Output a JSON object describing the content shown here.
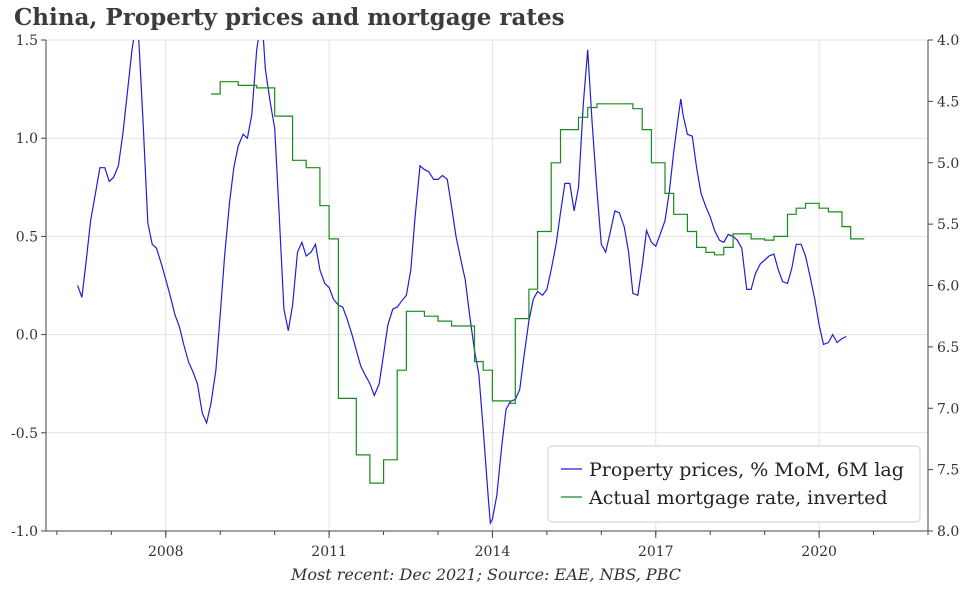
{
  "title": "China, Property prices and mortgage rates",
  "source": "Most recent: Dec 2021; Source: EAE, NBS, PBC",
  "chart_data": {
    "type": "line",
    "title": "China, Property prices and mortgage rates",
    "xlabel": "",
    "ylabel_left": "",
    "ylabel_right": "",
    "grid": true,
    "legend_position": "bottom-right",
    "x_ticks": [
      "2008",
      "2011",
      "2014",
      "2017",
      "2020"
    ],
    "xlim": [
      2005.8,
      2022.0
    ],
    "left_axis": {
      "range": [
        -1.0,
        1.5
      ],
      "ticks": [
        "-1.0",
        "-0.5",
        "0.0",
        "0.5",
        "1.0",
        "1.5"
      ]
    },
    "right_axis": {
      "range": [
        4.0,
        8.0
      ],
      "inverted": true,
      "ticks": [
        "4.0",
        "4.5",
        "5.0",
        "5.5",
        "6.0",
        "6.5",
        "7.0",
        "7.5",
        "8.0"
      ]
    },
    "series": [
      {
        "name": "Property prices, % MoM, 6M lag",
        "axis": "left",
        "color": "#1f1fd6",
        "points": [
          [
            2006.38,
            0.25
          ],
          [
            2006.46,
            0.19
          ],
          [
            2006.54,
            0.38
          ],
          [
            2006.62,
            0.58
          ],
          [
            2006.71,
            0.72
          ],
          [
            2006.79,
            0.85
          ],
          [
            2006.88,
            0.85
          ],
          [
            2006.96,
            0.78
          ],
          [
            2007.04,
            0.8
          ],
          [
            2007.13,
            0.86
          ],
          [
            2007.21,
            1.02
          ],
          [
            2007.29,
            1.22
          ],
          [
            2007.38,
            1.45
          ],
          [
            2007.44,
            1.56
          ],
          [
            2007.5,
            1.52
          ],
          [
            2007.58,
            1.1
          ],
          [
            2007.67,
            0.57
          ],
          [
            2007.75,
            0.46
          ],
          [
            2007.83,
            0.44
          ],
          [
            2007.92,
            0.36
          ],
          [
            2008.0,
            0.28
          ],
          [
            2008.08,
            0.2
          ],
          [
            2008.17,
            0.1
          ],
          [
            2008.25,
            0.04
          ],
          [
            2008.33,
            -0.05
          ],
          [
            2008.42,
            -0.14
          ],
          [
            2008.5,
            -0.19
          ],
          [
            2008.58,
            -0.25
          ],
          [
            2008.67,
            -0.4
          ],
          [
            2008.75,
            -0.45
          ],
          [
            2008.83,
            -0.35
          ],
          [
            2008.92,
            -0.18
          ],
          [
            2009.0,
            0.1
          ],
          [
            2009.08,
            0.4
          ],
          [
            2009.17,
            0.67
          ],
          [
            2009.25,
            0.85
          ],
          [
            2009.33,
            0.96
          ],
          [
            2009.42,
            1.02
          ],
          [
            2009.5,
            1.0
          ],
          [
            2009.58,
            1.12
          ],
          [
            2009.67,
            1.45
          ],
          [
            2009.73,
            1.56
          ],
          [
            2009.79,
            1.52
          ],
          [
            2009.83,
            1.35
          ],
          [
            2009.92,
            1.18
          ],
          [
            2010.0,
            1.05
          ],
          [
            2010.08,
            0.63
          ],
          [
            2010.17,
            0.13
          ],
          [
            2010.25,
            0.02
          ],
          [
            2010.33,
            0.15
          ],
          [
            2010.42,
            0.42
          ],
          [
            2010.5,
            0.47
          ],
          [
            2010.58,
            0.4
          ],
          [
            2010.67,
            0.42
          ],
          [
            2010.75,
            0.46
          ],
          [
            2010.83,
            0.33
          ],
          [
            2010.92,
            0.26
          ],
          [
            2011.0,
            0.24
          ],
          [
            2011.08,
            0.18
          ],
          [
            2011.17,
            0.15
          ],
          [
            2011.25,
            0.14
          ],
          [
            2011.33,
            0.08
          ],
          [
            2011.42,
            0.0
          ],
          [
            2011.5,
            -0.08
          ],
          [
            2011.58,
            -0.16
          ],
          [
            2011.67,
            -0.21
          ],
          [
            2011.75,
            -0.25
          ],
          [
            2011.83,
            -0.31
          ],
          [
            2011.92,
            -0.25
          ],
          [
            2012.0,
            -0.1
          ],
          [
            2012.08,
            0.05
          ],
          [
            2012.17,
            0.13
          ],
          [
            2012.25,
            0.14
          ],
          [
            2012.33,
            0.17
          ],
          [
            2012.42,
            0.2
          ],
          [
            2012.5,
            0.33
          ],
          [
            2012.58,
            0.6
          ],
          [
            2012.67,
            0.86
          ],
          [
            2012.75,
            0.84
          ],
          [
            2012.83,
            0.83
          ],
          [
            2012.92,
            0.79
          ],
          [
            2013.0,
            0.79
          ],
          [
            2013.08,
            0.81
          ],
          [
            2013.17,
            0.79
          ],
          [
            2013.25,
            0.65
          ],
          [
            2013.33,
            0.5
          ],
          [
            2013.42,
            0.38
          ],
          [
            2013.5,
            0.28
          ],
          [
            2013.58,
            0.1
          ],
          [
            2013.67,
            -0.08
          ],
          [
            2013.75,
            -0.2
          ],
          [
            2013.83,
            -0.48
          ],
          [
            2013.92,
            -0.82
          ],
          [
            2013.96,
            -0.96
          ],
          [
            2014.0,
            -0.94
          ],
          [
            2014.08,
            -0.82
          ],
          [
            2014.17,
            -0.57
          ],
          [
            2014.25,
            -0.38
          ],
          [
            2014.33,
            -0.34
          ],
          [
            2014.42,
            -0.33
          ],
          [
            2014.5,
            -0.28
          ],
          [
            2014.58,
            -0.11
          ],
          [
            2014.67,
            0.07
          ],
          [
            2014.75,
            0.18
          ],
          [
            2014.83,
            0.22
          ],
          [
            2014.92,
            0.2
          ],
          [
            2015.0,
            0.23
          ],
          [
            2015.08,
            0.33
          ],
          [
            2015.17,
            0.46
          ],
          [
            2015.25,
            0.62
          ],
          [
            2015.33,
            0.77
          ],
          [
            2015.42,
            0.77
          ],
          [
            2015.5,
            0.63
          ],
          [
            2015.58,
            0.75
          ],
          [
            2015.67,
            1.18
          ],
          [
            2015.75,
            1.45
          ],
          [
            2015.83,
            1.08
          ],
          [
            2015.92,
            0.73
          ],
          [
            2016.0,
            0.46
          ],
          [
            2016.08,
            0.42
          ],
          [
            2016.17,
            0.53
          ],
          [
            2016.25,
            0.63
          ],
          [
            2016.33,
            0.62
          ],
          [
            2016.42,
            0.55
          ],
          [
            2016.5,
            0.42
          ],
          [
            2016.58,
            0.21
          ],
          [
            2016.67,
            0.2
          ],
          [
            2016.75,
            0.35
          ],
          [
            2016.83,
            0.53
          ],
          [
            2016.92,
            0.47
          ],
          [
            2017.0,
            0.45
          ],
          [
            2017.08,
            0.51
          ],
          [
            2017.17,
            0.58
          ],
          [
            2017.25,
            0.73
          ],
          [
            2017.33,
            0.93
          ],
          [
            2017.42,
            1.12
          ],
          [
            2017.46,
            1.2
          ],
          [
            2017.5,
            1.12
          ],
          [
            2017.58,
            1.02
          ],
          [
            2017.67,
            1.01
          ],
          [
            2017.75,
            0.85
          ],
          [
            2017.83,
            0.72
          ],
          [
            2017.92,
            0.65
          ],
          [
            2018.0,
            0.6
          ],
          [
            2018.08,
            0.53
          ],
          [
            2018.17,
            0.48
          ],
          [
            2018.25,
            0.47
          ],
          [
            2018.33,
            0.51
          ],
          [
            2018.42,
            0.5
          ],
          [
            2018.5,
            0.48
          ],
          [
            2018.58,
            0.44
          ],
          [
            2018.67,
            0.23
          ],
          [
            2018.75,
            0.23
          ],
          [
            2018.83,
            0.31
          ],
          [
            2018.92,
            0.36
          ],
          [
            2019.0,
            0.38
          ],
          [
            2019.08,
            0.4
          ],
          [
            2019.17,
            0.41
          ],
          [
            2019.25,
            0.33
          ],
          [
            2019.33,
            0.27
          ],
          [
            2019.42,
            0.26
          ],
          [
            2019.5,
            0.34
          ],
          [
            2019.58,
            0.46
          ],
          [
            2019.67,
            0.46
          ],
          [
            2019.75,
            0.4
          ],
          [
            2019.83,
            0.3
          ],
          [
            2019.92,
            0.18
          ],
          [
            2020.0,
            0.05
          ],
          [
            2020.08,
            -0.05
          ],
          [
            2020.17,
            -0.04
          ],
          [
            2020.25,
            0.0
          ],
          [
            2020.33,
            -0.04
          ],
          [
            2020.42,
            -0.02
          ],
          [
            2020.5,
            -0.01
          ]
        ]
      },
      {
        "name": "Actual mortgage rate, inverted",
        "axis": "right",
        "color": "#1a8a1a",
        "steps": [
          [
            2008.83,
            4.44
          ],
          [
            2009.0,
            4.34
          ],
          [
            2009.33,
            4.37
          ],
          [
            2009.67,
            4.39
          ],
          [
            2010.0,
            4.62
          ],
          [
            2010.33,
            4.98
          ],
          [
            2010.58,
            5.04
          ],
          [
            2010.83,
            5.35
          ],
          [
            2011.0,
            5.62
          ],
          [
            2011.17,
            6.92
          ],
          [
            2011.5,
            7.38
          ],
          [
            2011.75,
            7.61
          ],
          [
            2012.0,
            7.42
          ],
          [
            2012.25,
            6.69
          ],
          [
            2012.42,
            6.21
          ],
          [
            2012.75,
            6.25
          ],
          [
            2013.0,
            6.29
          ],
          [
            2013.25,
            6.33
          ],
          [
            2013.67,
            6.62
          ],
          [
            2013.83,
            6.69
          ],
          [
            2014.0,
            6.94
          ],
          [
            2014.33,
            6.96
          ],
          [
            2014.42,
            6.27
          ],
          [
            2014.67,
            6.03
          ],
          [
            2014.83,
            5.56
          ],
          [
            2015.08,
            5.0
          ],
          [
            2015.25,
            4.73
          ],
          [
            2015.58,
            4.63
          ],
          [
            2015.75,
            4.55
          ],
          [
            2015.92,
            4.52
          ],
          [
            2016.58,
            4.56
          ],
          [
            2016.75,
            4.73
          ],
          [
            2016.92,
            5.0
          ],
          [
            2017.17,
            5.25
          ],
          [
            2017.33,
            5.42
          ],
          [
            2017.58,
            5.56
          ],
          [
            2017.75,
            5.69
          ],
          [
            2017.92,
            5.73
          ],
          [
            2018.08,
            5.75
          ],
          [
            2018.25,
            5.69
          ],
          [
            2018.42,
            5.58
          ],
          [
            2018.75,
            5.62
          ],
          [
            2019.0,
            5.63
          ],
          [
            2019.17,
            5.6
          ],
          [
            2019.42,
            5.42
          ],
          [
            2019.58,
            5.37
          ],
          [
            2019.75,
            5.33
          ],
          [
            2020.0,
            5.37
          ],
          [
            2020.17,
            5.4
          ],
          [
            2020.42,
            5.52
          ],
          [
            2020.58,
            5.62
          ]
        ],
        "end_x": 2020.83
      }
    ]
  }
}
